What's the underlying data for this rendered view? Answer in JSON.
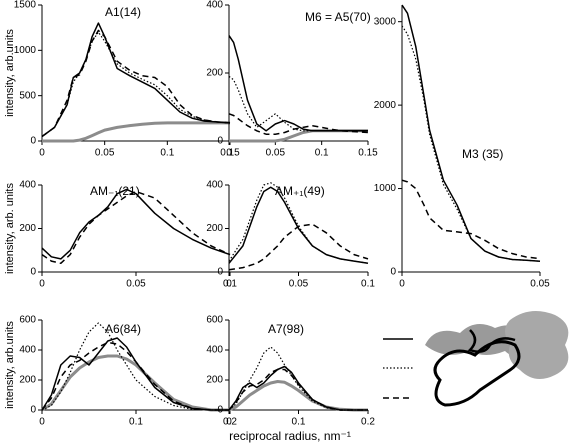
{
  "chart_data": [
    {
      "type": "line",
      "title": "A1(14)",
      "ylabel": "intensity, arb.units",
      "xlim": [
        0,
        0.15
      ],
      "ylim": [
        0,
        1500
      ],
      "xticks": [
        0,
        0.05,
        0.1,
        0.15
      ],
      "yticks": [
        0,
        500,
        1000,
        1500
      ],
      "x": [
        0,
        0.01,
        0.02,
        0.025,
        0.03,
        0.035,
        0.04,
        0.045,
        0.05,
        0.06,
        0.07,
        0.08,
        0.09,
        0.1,
        0.11,
        0.12,
        0.13,
        0.14,
        0.15
      ],
      "series": [
        {
          "color": "#000000",
          "style": "solid",
          "values": [
            50,
            150,
            400,
            700,
            750,
            900,
            1150,
            1300,
            1150,
            800,
            720,
            650,
            580,
            450,
            320,
            250,
            220,
            210,
            200
          ]
        },
        {
          "color": "#000000",
          "style": "dotted",
          "values": [
            50,
            150,
            400,
            650,
            750,
            900,
            1100,
            1200,
            1100,
            850,
            750,
            680,
            620,
            500,
            350,
            270,
            230,
            210,
            200
          ]
        },
        {
          "color": "#000000",
          "style": "dashed",
          "values": [
            50,
            150,
            450,
            700,
            730,
            880,
            1100,
            1220,
            1150,
            880,
            780,
            720,
            700,
            600,
            400,
            280,
            230,
            210,
            200
          ]
        },
        {
          "color": "#8c8c8c",
          "style": "thick",
          "values": [
            0,
            0,
            0,
            0,
            10,
            30,
            60,
            90,
            120,
            150,
            170,
            185,
            195,
            200,
            200,
            200,
            200,
            200,
            200
          ]
        }
      ]
    },
    {
      "type": "line",
      "title": "M6 = A5(70)",
      "xlim": [
        0,
        0.15
      ],
      "ylim": [
        0,
        400
      ],
      "xticks": [
        0,
        0.05,
        0.1,
        0.15
      ],
      "yticks": [
        0,
        200,
        400
      ],
      "x": [
        0,
        0.005,
        0.01,
        0.02,
        0.03,
        0.04,
        0.05,
        0.06,
        0.07,
        0.08,
        0.09,
        0.1,
        0.12,
        0.15
      ],
      "series": [
        {
          "color": "#000000",
          "style": "solid",
          "values": [
            310,
            290,
            240,
            120,
            50,
            30,
            50,
            60,
            50,
            35,
            30,
            30,
            30,
            30
          ]
        },
        {
          "color": "#000000",
          "style": "dotted",
          "values": [
            190,
            180,
            150,
            80,
            40,
            60,
            80,
            55,
            35,
            30,
            30,
            30,
            30,
            30
          ]
        },
        {
          "color": "#000000",
          "style": "dashed",
          "values": [
            80,
            75,
            65,
            45,
            30,
            20,
            20,
            25,
            35,
            40,
            45,
            40,
            30,
            25
          ]
        },
        {
          "color": "#8c8c8c",
          "style": "thick",
          "values": [
            0,
            0,
            0,
            0,
            0,
            0,
            0,
            5,
            15,
            25,
            30,
            30,
            30,
            30
          ]
        }
      ]
    },
    {
      "type": "line",
      "title": "M3 (35)",
      "xlim": [
        0,
        0.05
      ],
      "ylim": [
        0,
        3200
      ],
      "xticks": [
        0,
        0.05
      ],
      "yticks": [
        0,
        1000,
        2000,
        3000
      ],
      "x": [
        0,
        0.002,
        0.005,
        0.008,
        0.01,
        0.015,
        0.02,
        0.025,
        0.03,
        0.035,
        0.04,
        0.045,
        0.05
      ],
      "series": [
        {
          "color": "#000000",
          "style": "solid",
          "values": [
            3200,
            3100,
            2700,
            2100,
            1700,
            1100,
            800,
            400,
            250,
            180,
            150,
            140,
            130
          ]
        },
        {
          "color": "#000000",
          "style": "dotted",
          "values": [
            2950,
            2850,
            2550,
            2050,
            1650,
            1050,
            750,
            400,
            250,
            180,
            150,
            140,
            130
          ]
        },
        {
          "color": "#000000",
          "style": "dashed",
          "values": [
            1100,
            1080,
            1000,
            800,
            650,
            500,
            480,
            460,
            380,
            280,
            220,
            180,
            160
          ]
        }
      ]
    },
    {
      "type": "line",
      "title": "AM₋₁(21)",
      "ylabel": "intensity, arb. units",
      "xlim": [
        0,
        0.1
      ],
      "ylim": [
        0,
        400
      ],
      "xticks": [
        0,
        0.05,
        0.1
      ],
      "yticks": [
        0,
        200,
        400
      ],
      "x": [
        0,
        0.005,
        0.01,
        0.015,
        0.02,
        0.025,
        0.03,
        0.035,
        0.04,
        0.045,
        0.05,
        0.06,
        0.07,
        0.08,
        0.09,
        0.1
      ],
      "series": [
        {
          "color": "#000000",
          "style": "solid",
          "values": [
            110,
            70,
            60,
            100,
            180,
            230,
            260,
            300,
            360,
            380,
            360,
            270,
            200,
            150,
            110,
            80
          ]
        },
        {
          "color": "#000000",
          "style": "dashed",
          "values": [
            80,
            50,
            40,
            80,
            160,
            220,
            260,
            290,
            320,
            350,
            370,
            340,
            260,
            180,
            120,
            80
          ]
        }
      ]
    },
    {
      "type": "line",
      "title": "AM₊₁(49)",
      "xlim": [
        0,
        0.1
      ],
      "ylim": [
        0,
        400
      ],
      "xticks": [
        0,
        0.05,
        0.1
      ],
      "yticks": [
        0,
        200,
        400
      ],
      "x": [
        0,
        0.01,
        0.02,
        0.025,
        0.03,
        0.035,
        0.04,
        0.05,
        0.06,
        0.07,
        0.08,
        0.09,
        0.1
      ],
      "series": [
        {
          "color": "#000000",
          "style": "solid",
          "values": [
            40,
            120,
            300,
            370,
            390,
            370,
            320,
            200,
            120,
            80,
            60,
            50,
            40
          ]
        },
        {
          "color": "#000000",
          "style": "dotted",
          "values": [
            50,
            150,
            330,
            400,
            410,
            390,
            340,
            210,
            120,
            80,
            60,
            50,
            40
          ]
        },
        {
          "color": "#000000",
          "style": "dashed",
          "values": [
            10,
            20,
            40,
            60,
            90,
            120,
            160,
            210,
            220,
            180,
            120,
            80,
            60
          ]
        }
      ]
    },
    {
      "type": "line",
      "title": "A6(84)",
      "ylabel": "intensity, arb.units",
      "xlim": [
        0,
        0.2
      ],
      "ylim": [
        0,
        600
      ],
      "xticks": [
        0,
        0.1,
        0.2
      ],
      "yticks": [
        0,
        200,
        400,
        600
      ],
      "x": [
        0,
        0.01,
        0.02,
        0.03,
        0.04,
        0.05,
        0.06,
        0.07,
        0.08,
        0.09,
        0.1,
        0.12,
        0.14,
        0.16,
        0.18,
        0.2
      ],
      "series": [
        {
          "color": "#000000",
          "style": "solid",
          "values": [
            0,
            100,
            300,
            360,
            350,
            300,
            380,
            460,
            480,
            420,
            320,
            150,
            50,
            10,
            0,
            0
          ]
        },
        {
          "color": "#000000",
          "style": "dotted",
          "values": [
            0,
            30,
            120,
            250,
            400,
            520,
            580,
            520,
            400,
            300,
            200,
            90,
            30,
            5,
            0,
            0
          ]
        },
        {
          "color": "#000000",
          "style": "dashed",
          "values": [
            0,
            80,
            220,
            300,
            330,
            380,
            420,
            450,
            440,
            390,
            320,
            170,
            60,
            10,
            0,
            0
          ]
        },
        {
          "color": "#8c8c8c",
          "style": "thick",
          "values": [
            0,
            40,
            130,
            220,
            280,
            320,
            350,
            360,
            360,
            340,
            300,
            180,
            70,
            20,
            0,
            0
          ]
        }
      ]
    },
    {
      "type": "line",
      "title": "A7(98)",
      "xlim": [
        0,
        0.2
      ],
      "ylim": [
        0,
        600
      ],
      "xticks": [
        0,
        0.1,
        0.2
      ],
      "yticks": [
        0,
        200,
        400,
        600
      ],
      "x": [
        0,
        0.01,
        0.02,
        0.03,
        0.04,
        0.05,
        0.06,
        0.07,
        0.08,
        0.09,
        0.1,
        0.12,
        0.14,
        0.16,
        0.18,
        0.2
      ],
      "series": [
        {
          "color": "#000000",
          "style": "solid",
          "values": [
            0,
            60,
            150,
            180,
            150,
            180,
            230,
            270,
            290,
            250,
            180,
            70,
            20,
            0,
            0,
            0
          ]
        },
        {
          "color": "#000000",
          "style": "dotted",
          "values": [
            0,
            40,
            120,
            200,
            280,
            380,
            420,
            380,
            300,
            230,
            160,
            60,
            15,
            0,
            0,
            0
          ]
        },
        {
          "color": "#000000",
          "style": "dashed",
          "values": [
            0,
            50,
            120,
            160,
            170,
            200,
            250,
            270,
            270,
            230,
            170,
            70,
            20,
            0,
            0,
            0
          ]
        },
        {
          "color": "#8c8c8c",
          "style": "thick",
          "values": [
            0,
            20,
            60,
            100,
            130,
            160,
            180,
            190,
            185,
            160,
            130,
            60,
            20,
            5,
            0,
            0
          ]
        }
      ]
    }
  ],
  "x_label": "reciprocal radius, nm⁻¹"
}
